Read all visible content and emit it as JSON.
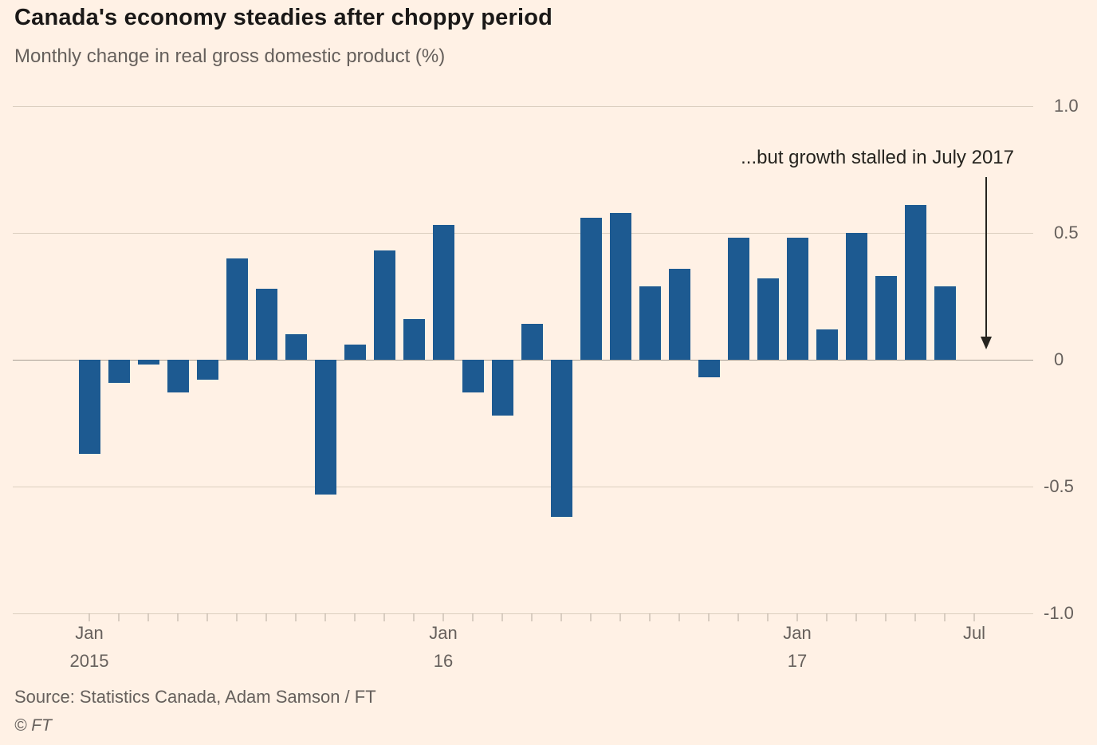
{
  "header": {
    "title": "Canada's economy steadies after choppy period",
    "subtitle": "Monthly change in real gross domestic product (%)"
  },
  "annotation": {
    "text": "...but growth stalled in July 2017"
  },
  "footer": {
    "source": "Source: Statistics Canada, Adam Samson / FT",
    "copyright": "© FT"
  },
  "colors": {
    "background": "#FFF1E5",
    "bar": "#1d5a91",
    "grid": "#dccfc0",
    "zero_line": "#a59d93",
    "muted_text": "#66605C",
    "dark_text": "#1a1817"
  },
  "chart_data": {
    "type": "bar",
    "title": "Canada's economy steadies after choppy period",
    "subtitle": "Monthly change in real gross domestic product (%)",
    "xlabel": "",
    "ylabel": "Monthly change in real GDP (%)",
    "ylim": [
      -1.0,
      1.0
    ],
    "grid": true,
    "legend": false,
    "categories": [
      "Jan 2015",
      "Feb 2015",
      "Mar 2015",
      "Apr 2015",
      "May 2015",
      "Jun 2015",
      "Jul 2015",
      "Aug 2015",
      "Sep 2015",
      "Oct 2015",
      "Nov 2015",
      "Dec 2015",
      "Jan 2016",
      "Feb 2016",
      "Mar 2016",
      "Apr 2016",
      "May 2016",
      "Jun 2016",
      "Jul 2016",
      "Aug 2016",
      "Sep 2016",
      "Oct 2016",
      "Nov 2016",
      "Dec 2016",
      "Jan 2017",
      "Feb 2017",
      "Mar 2017",
      "Apr 2017",
      "May 2017",
      "Jun 2017",
      "Jul 2017"
    ],
    "values": [
      -0.37,
      -0.09,
      -0.02,
      -0.13,
      -0.08,
      0.4,
      0.28,
      0.1,
      -0.53,
      0.06,
      0.43,
      0.16,
      0.53,
      -0.13,
      -0.22,
      0.14,
      -0.62,
      0.56,
      0.58,
      0.29,
      0.36,
      -0.07,
      0.48,
      0.32,
      0.48,
      0.12,
      0.5,
      0.33,
      0.61,
      0.29,
      0.0
    ],
    "yticks": [
      {
        "value": 1.0,
        "label": "1.0"
      },
      {
        "value": 0.5,
        "label": "0.5"
      },
      {
        "value": 0,
        "label": "0"
      },
      {
        "value": -0.5,
        "label": "-0.5"
      },
      {
        "value": -1.0,
        "label": "-1.0"
      }
    ],
    "xticks": [
      {
        "month": 0,
        "line1": "Jan",
        "line2": "2015"
      },
      {
        "month": 12,
        "line1": "Jan",
        "line2": "16"
      },
      {
        "month": 24,
        "line1": "Jan",
        "line2": "17"
      },
      {
        "month": 30,
        "line1": "Jul",
        "line2": ""
      }
    ],
    "annotation": "...but growth stalled in July 2017"
  }
}
